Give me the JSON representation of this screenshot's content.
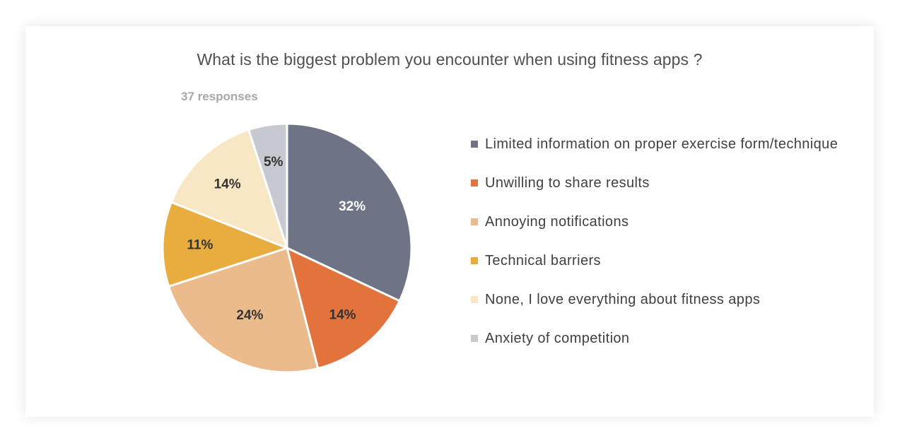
{
  "chart_data": {
    "type": "pie",
    "title": "What is the biggest problem you encounter when using  fitness apps ?",
    "subtitle": "37 responses",
    "legend_position": "right",
    "slices": [
      {
        "name": "Limited information on proper exercise form/technique",
        "value": 32,
        "label": "32%",
        "color": "#6e7486",
        "label_color": "#ffffff"
      },
      {
        "name": "Unwilling to share results",
        "value": 14,
        "label": "14%",
        "color": "#e3733d",
        "label_color": "#333333"
      },
      {
        "name": "Annoying notifications",
        "value": 24,
        "label": "24%",
        "color": "#ebbb8b",
        "label_color": "#333333"
      },
      {
        "name": "Technical barriers",
        "value": 11,
        "label": "11%",
        "color": "#e8ad3e",
        "label_color": "#333333"
      },
      {
        "name": "None, I love everything about fitness apps",
        "value": 14,
        "label": "14%",
        "color": "#f7e7c4",
        "label_color": "#333333"
      },
      {
        "name": "Anxiety of competition",
        "value": 5,
        "label": "5%",
        "color": "#c6c9d0",
        "label_color": "#333333"
      }
    ]
  }
}
